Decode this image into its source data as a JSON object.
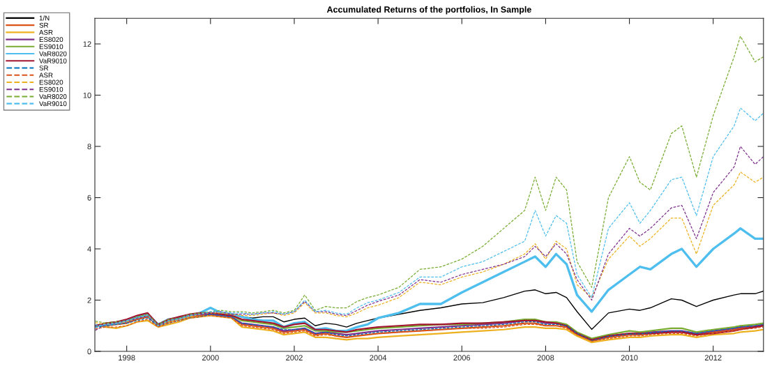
{
  "chart_data": {
    "type": "line",
    "title": "Accumulated Returns of the portfolios, In Sample",
    "x": [
      1997.25,
      1997.5,
      1997.75,
      1998.0,
      1998.25,
      1998.5,
      1998.75,
      1999.0,
      1999.25,
      1999.5,
      1999.75,
      2000.0,
      2000.25,
      2000.5,
      2000.75,
      2001.0,
      2001.25,
      2001.5,
      2001.75,
      2002.0,
      2002.25,
      2002.5,
      2002.75,
      2003.0,
      2003.25,
      2003.5,
      2003.75,
      2004.0,
      2004.5,
      2005.0,
      2005.5,
      2006.0,
      2006.5,
      2007.0,
      2007.5,
      2007.75,
      2008.0,
      2008.25,
      2008.5,
      2008.75,
      2009.1,
      2009.5,
      2010.0,
      2010.25,
      2010.5,
      2011.0,
      2011.25,
      2011.6,
      2012.0,
      2012.5,
      2012.65,
      2013.0,
      2013.2
    ],
    "series": [
      {
        "name": "1/N",
        "color": "#000000",
        "line_style": "solid",
        "values": [
          1.0,
          1.1,
          1.15,
          1.2,
          1.3,
          1.4,
          1.05,
          1.2,
          1.3,
          1.35,
          1.4,
          1.5,
          1.45,
          1.4,
          1.35,
          1.3,
          1.35,
          1.35,
          1.15,
          1.25,
          1.3,
          1.0,
          1.1,
          1.05,
          0.95,
          1.1,
          1.2,
          1.3,
          1.45,
          1.6,
          1.7,
          1.85,
          1.9,
          2.1,
          2.35,
          2.4,
          2.25,
          2.3,
          2.1,
          1.55,
          0.86,
          1.5,
          1.65,
          1.6,
          1.7,
          2.05,
          2.0,
          1.75,
          2.0,
          2.2,
          2.25,
          2.25,
          2.35
        ]
      },
      {
        "name": "SR",
        "color": "#d95319",
        "line_style": "solid",
        "values": [
          1.0,
          1.0,
          1.05,
          1.1,
          1.25,
          1.35,
          1.0,
          1.15,
          1.25,
          1.35,
          1.4,
          1.45,
          1.4,
          1.35,
          1.05,
          1.0,
          0.95,
          0.9,
          0.75,
          0.8,
          0.85,
          0.65,
          0.7,
          0.6,
          0.55,
          0.6,
          0.65,
          0.7,
          0.75,
          0.8,
          0.85,
          0.9,
          0.95,
          1.0,
          1.1,
          1.1,
          1.0,
          1.0,
          0.95,
          0.65,
          0.4,
          0.55,
          0.65,
          0.65,
          0.7,
          0.75,
          0.75,
          0.65,
          0.75,
          0.85,
          0.9,
          0.95,
          1.0
        ]
      },
      {
        "name": "ASR",
        "color": "#edb120",
        "line_style": "solid",
        "values": [
          1.0,
          0.95,
          0.9,
          1.0,
          1.15,
          1.2,
          0.95,
          1.05,
          1.15,
          1.3,
          1.35,
          1.4,
          1.35,
          1.3,
          0.95,
          0.9,
          0.85,
          0.8,
          0.65,
          0.7,
          0.75,
          0.55,
          0.55,
          0.5,
          0.45,
          0.5,
          0.5,
          0.55,
          0.6,
          0.65,
          0.7,
          0.75,
          0.8,
          0.85,
          0.95,
          0.95,
          0.9,
          0.9,
          0.85,
          0.6,
          0.35,
          0.45,
          0.55,
          0.55,
          0.6,
          0.65,
          0.65,
          0.55,
          0.65,
          0.7,
          0.75,
          0.8,
          0.85
        ]
      },
      {
        "name": "ES8020",
        "color": "#7e2f8e",
        "line_style": "solid",
        "values": [
          1.0,
          1.05,
          1.1,
          1.15,
          1.3,
          1.4,
          1.0,
          1.2,
          1.3,
          1.4,
          1.45,
          1.45,
          1.4,
          1.35,
          1.1,
          1.05,
          1.0,
          0.95,
          0.8,
          0.85,
          0.9,
          0.7,
          0.75,
          0.7,
          0.65,
          0.7,
          0.75,
          0.8,
          0.85,
          0.9,
          0.95,
          1.0,
          1.05,
          1.1,
          1.2,
          1.2,
          1.1,
          1.1,
          1.0,
          0.7,
          0.45,
          0.6,
          0.7,
          0.7,
          0.75,
          0.8,
          0.8,
          0.7,
          0.8,
          0.9,
          0.95,
          1.0,
          1.05
        ]
      },
      {
        "name": "ES9010",
        "color": "#77ac30",
        "line_style": "solid",
        "values": [
          1.0,
          1.1,
          1.15,
          1.2,
          1.35,
          1.45,
          1.05,
          1.2,
          1.3,
          1.4,
          1.5,
          1.5,
          1.45,
          1.4,
          1.2,
          1.15,
          1.1,
          1.05,
          0.9,
          0.95,
          1.0,
          0.8,
          0.8,
          0.75,
          0.75,
          0.8,
          0.85,
          0.9,
          0.95,
          1.0,
          1.05,
          1.05,
          1.1,
          1.15,
          1.25,
          1.25,
          1.15,
          1.15,
          1.05,
          0.75,
          0.5,
          0.65,
          0.8,
          0.75,
          0.8,
          0.9,
          0.9,
          0.75,
          0.85,
          0.95,
          1.0,
          1.05,
          1.1
        ]
      },
      {
        "name": "VaR8020",
        "color": "#4dbeee",
        "line_style": "solid",
        "values": [
          1.0,
          1.05,
          1.1,
          1.2,
          1.35,
          1.45,
          1.05,
          1.25,
          1.3,
          1.4,
          1.5,
          1.7,
          1.5,
          1.45,
          1.35,
          1.25,
          1.2,
          1.2,
          0.95,
          1.1,
          1.15,
          0.85,
          0.9,
          0.8,
          0.8,
          0.95,
          1.05,
          1.3,
          1.5,
          1.85,
          1.85,
          2.3,
          2.7,
          3.1,
          3.5,
          3.7,
          3.3,
          3.8,
          3.4,
          2.2,
          1.55,
          2.4,
          3.0,
          3.3,
          3.2,
          3.8,
          4.0,
          3.3,
          4.0,
          4.6,
          4.8,
          4.4,
          4.4
        ]
      },
      {
        "name": "VaR9010",
        "color": "#a2142f",
        "line_style": "solid",
        "values": [
          1.0,
          1.1,
          1.15,
          1.25,
          1.4,
          1.5,
          1.05,
          1.25,
          1.35,
          1.45,
          1.5,
          1.5,
          1.45,
          1.4,
          1.25,
          1.2,
          1.15,
          1.1,
          0.95,
          1.05,
          1.1,
          0.85,
          0.85,
          0.8,
          0.75,
          0.85,
          0.9,
          0.95,
          1.0,
          1.05,
          1.05,
          1.1,
          1.1,
          1.15,
          1.2,
          1.2,
          1.15,
          1.1,
          1.0,
          0.7,
          0.45,
          0.6,
          0.7,
          0.7,
          0.7,
          0.75,
          0.75,
          0.65,
          0.7,
          0.8,
          0.85,
          0.95,
          1.0
        ]
      },
      {
        "name": "SR",
        "color": "#0072bd",
        "line_style": "dashed",
        "values": [
          0.94,
          1.0,
          1.05,
          1.1,
          1.2,
          1.3,
          1.0,
          1.1,
          1.2,
          1.3,
          1.35,
          1.45,
          1.4,
          1.35,
          1.1,
          1.05,
          1.0,
          0.95,
          0.85,
          0.85,
          0.9,
          0.7,
          0.75,
          0.65,
          0.6,
          0.65,
          0.7,
          0.75,
          0.8,
          0.85,
          0.9,
          0.95,
          1.0,
          1.05,
          1.15,
          1.15,
          1.05,
          1.05,
          1.0,
          0.7,
          0.42,
          0.58,
          0.68,
          0.68,
          0.72,
          0.8,
          0.8,
          0.7,
          0.8,
          0.9,
          0.95,
          1.0,
          1.05
        ]
      },
      {
        "name": "ASR",
        "color": "#d95319",
        "line_style": "dashed",
        "values": [
          0.88,
          0.95,
          0.95,
          1.0,
          1.15,
          1.25,
          0.95,
          1.1,
          1.2,
          1.3,
          1.35,
          1.4,
          1.35,
          1.3,
          1.0,
          0.95,
          0.9,
          0.85,
          0.7,
          0.75,
          0.8,
          0.6,
          0.65,
          0.6,
          0.55,
          0.6,
          0.65,
          0.7,
          0.75,
          0.8,
          0.85,
          0.9,
          0.9,
          0.95,
          1.05,
          1.05,
          1.0,
          1.0,
          0.9,
          0.65,
          0.4,
          0.5,
          0.6,
          0.6,
          0.65,
          0.7,
          0.7,
          0.6,
          0.7,
          0.8,
          0.85,
          0.9,
          0.95
        ]
      },
      {
        "name": "ES8020",
        "color": "#edb120",
        "line_style": "dashed",
        "values": [
          1.12,
          1.05,
          1.1,
          1.15,
          1.3,
          1.4,
          1.0,
          1.15,
          1.25,
          1.35,
          1.45,
          1.5,
          1.5,
          1.45,
          1.4,
          1.4,
          1.45,
          1.5,
          1.4,
          1.5,
          1.9,
          1.5,
          1.5,
          1.4,
          1.35,
          1.5,
          1.7,
          1.8,
          2.1,
          2.7,
          2.6,
          2.9,
          3.1,
          3.4,
          3.8,
          4.2,
          3.6,
          4.3,
          4.0,
          2.6,
          2.1,
          3.6,
          4.5,
          4.1,
          4.4,
          5.2,
          5.2,
          3.8,
          5.7,
          6.5,
          7.0,
          6.6,
          6.8
        ]
      },
      {
        "name": "ES9010",
        "color": "#7e2f8e",
        "line_style": "dashed",
        "values": [
          0.82,
          1.05,
          1.1,
          1.2,
          1.3,
          1.4,
          1.0,
          1.2,
          1.3,
          1.4,
          1.45,
          1.5,
          1.55,
          1.45,
          1.45,
          1.45,
          1.5,
          1.5,
          1.45,
          1.55,
          1.95,
          1.55,
          1.55,
          1.45,
          1.4,
          1.6,
          1.8,
          1.95,
          2.2,
          2.8,
          2.7,
          3.0,
          3.2,
          3.4,
          3.7,
          4.1,
          3.7,
          4.2,
          3.8,
          2.8,
          2.0,
          3.8,
          4.8,
          4.5,
          4.8,
          5.6,
          5.7,
          4.4,
          6.2,
          7.2,
          8.0,
          7.3,
          7.6
        ]
      },
      {
        "name": "VaR8020",
        "color": "#77ac30",
        "line_style": "dashed",
        "values": [
          1.18,
          1.1,
          1.15,
          1.2,
          1.35,
          1.45,
          1.05,
          1.25,
          1.3,
          1.45,
          1.5,
          1.55,
          1.6,
          1.55,
          1.55,
          1.5,
          1.55,
          1.6,
          1.5,
          1.6,
          2.2,
          1.6,
          1.75,
          1.7,
          1.7,
          1.95,
          2.1,
          2.2,
          2.5,
          3.2,
          3.3,
          3.6,
          4.1,
          4.8,
          5.5,
          6.8,
          5.5,
          6.8,
          6.3,
          3.5,
          2.5,
          6.0,
          7.6,
          6.6,
          6.3,
          8.5,
          8.8,
          6.8,
          9.2,
          11.5,
          12.3,
          11.3,
          11.5
        ]
      },
      {
        "name": "VaR9010",
        "color": "#4dbeee",
        "line_style": "dashed",
        "values": [
          1.0,
          1.05,
          1.1,
          1.2,
          1.3,
          1.4,
          1.0,
          1.2,
          1.25,
          1.4,
          1.45,
          1.55,
          1.55,
          1.5,
          1.5,
          1.45,
          1.5,
          1.55,
          1.45,
          1.55,
          2.0,
          1.55,
          1.6,
          1.5,
          1.45,
          1.7,
          1.9,
          2.0,
          2.3,
          2.9,
          2.9,
          3.3,
          3.5,
          3.9,
          4.3,
          5.5,
          4.5,
          5.3,
          5.0,
          3.0,
          2.1,
          4.8,
          5.8,
          5.0,
          5.5,
          6.7,
          6.8,
          5.3,
          7.6,
          8.8,
          9.5,
          9.0,
          9.3
        ]
      }
    ],
    "xlim": [
      1997.24,
      2013.2
    ],
    "ylim": [
      0,
      13
    ],
    "xticks": [
      1998,
      2000,
      2002,
      2004,
      2006,
      2008,
      2010,
      2012
    ],
    "yticks": [
      0,
      2,
      4,
      6,
      8,
      10,
      12
    ],
    "grid": false,
    "legend": "left",
    "marker": "none"
  }
}
